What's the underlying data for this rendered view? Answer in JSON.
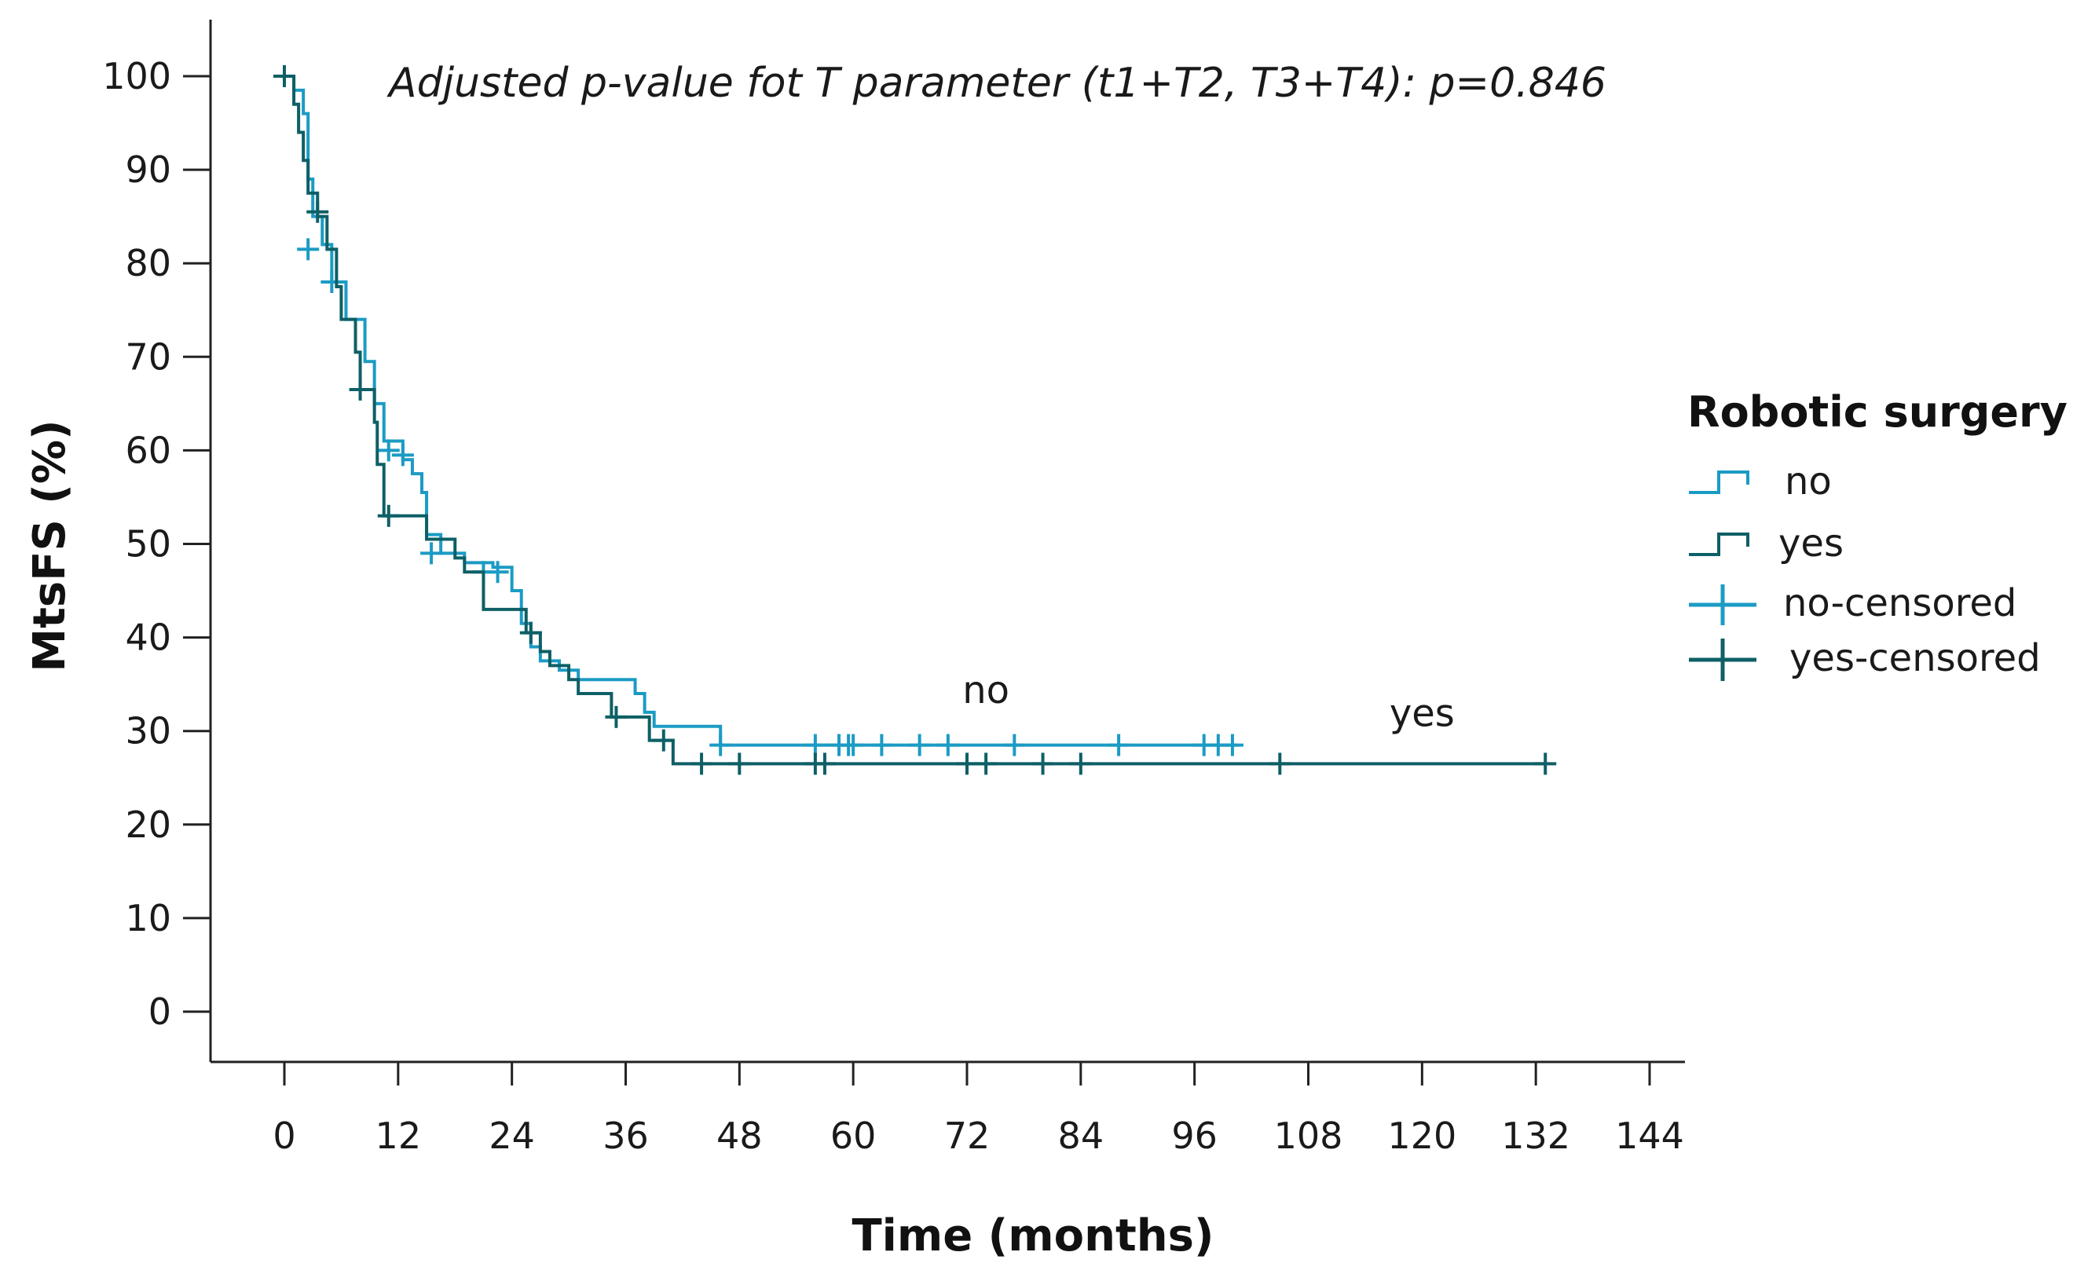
{
  "chart_data": {
    "type": "line",
    "subtype": "kaplan-meier",
    "title": "",
    "annotation": "Adjusted p-value fot T parameter (t1+T2, T3+T4):  p=0.846",
    "xlabel": "Time (months)",
    "ylabel": "MtsFS (%)",
    "xlim": [
      0,
      144
    ],
    "ylim": [
      0,
      100
    ],
    "xticks": [
      0,
      12,
      24,
      36,
      48,
      60,
      72,
      84,
      96,
      108,
      120,
      132,
      144
    ],
    "yticks": [
      0,
      10,
      20,
      30,
      40,
      50,
      60,
      70,
      80,
      90,
      100
    ],
    "grid": false,
    "legend": {
      "title": "Robotic surgery",
      "position": "right",
      "entries": [
        "no",
        "yes",
        "no-censored",
        "yes-censored"
      ]
    },
    "series": [
      {
        "name": "no",
        "color": "#1b9bc4",
        "steps": [
          [
            0,
            100
          ],
          [
            1,
            98.5
          ],
          [
            2,
            96
          ],
          [
            2.5,
            89
          ],
          [
            3,
            85
          ],
          [
            4,
            82
          ],
          [
            5,
            78
          ],
          [
            6.5,
            74
          ],
          [
            8.5,
            69.5
          ],
          [
            9.5,
            65
          ],
          [
            10.5,
            61
          ],
          [
            12.5,
            59
          ],
          [
            13.5,
            57.5
          ],
          [
            14.5,
            55.5
          ],
          [
            15,
            51
          ],
          [
            16.5,
            49
          ],
          [
            19,
            48
          ],
          [
            22,
            47.5
          ],
          [
            24,
            45
          ],
          [
            25,
            41.5
          ],
          [
            26,
            39
          ],
          [
            27,
            37.5
          ],
          [
            29,
            36.5
          ],
          [
            31,
            35.5
          ],
          [
            37,
            34
          ],
          [
            38,
            32
          ],
          [
            39,
            30.5
          ],
          [
            46,
            28.5
          ],
          [
            100.5,
            28.5
          ]
        ],
        "censored": [
          [
            2.5,
            81.5
          ],
          [
            5,
            78
          ],
          [
            11,
            60
          ],
          [
            12.5,
            59.5
          ],
          [
            15.5,
            49
          ],
          [
            21,
            47
          ],
          [
            22.5,
            47
          ],
          [
            46,
            28.5
          ],
          [
            56,
            28.5
          ],
          [
            58.5,
            28.5
          ],
          [
            59.5,
            28.5
          ],
          [
            60,
            28.5
          ],
          [
            63,
            28.5
          ],
          [
            67,
            28.5
          ],
          [
            70,
            28.5
          ],
          [
            77,
            28.5
          ],
          [
            88,
            28.5
          ],
          [
            97,
            28.5
          ],
          [
            98.5,
            28.5
          ],
          [
            100,
            28.5
          ]
        ]
      },
      {
        "name": "yes",
        "color": "#0e5f66",
        "steps": [
          [
            0,
            100
          ],
          [
            1,
            97
          ],
          [
            1.5,
            94
          ],
          [
            2,
            91
          ],
          [
            2.5,
            87.5
          ],
          [
            3.5,
            85
          ],
          [
            4.5,
            81.5
          ],
          [
            5.5,
            77.5
          ],
          [
            6,
            74
          ],
          [
            7.5,
            70.5
          ],
          [
            8,
            66.5
          ],
          [
            9.5,
            63
          ],
          [
            9.8,
            58.5
          ],
          [
            10.5,
            53
          ],
          [
            15,
            50.5
          ],
          [
            18,
            48.5
          ],
          [
            19,
            47
          ],
          [
            21,
            43
          ],
          [
            25.5,
            40.5
          ],
          [
            27,
            38.5
          ],
          [
            28,
            37
          ],
          [
            30,
            35.5
          ],
          [
            31,
            34
          ],
          [
            34.5,
            31.5
          ],
          [
            38.5,
            29
          ],
          [
            41,
            26.5
          ],
          [
            133,
            26.5
          ]
        ],
        "censored": [
          [
            0,
            100
          ],
          [
            3.5,
            85.5
          ],
          [
            8,
            66.5
          ],
          [
            11,
            53
          ],
          [
            26,
            40.5
          ],
          [
            35,
            31.5
          ],
          [
            40,
            29
          ],
          [
            44,
            26.5
          ],
          [
            48,
            26.5
          ],
          [
            56,
            26.5
          ],
          [
            57,
            26.5
          ],
          [
            72,
            26.5
          ],
          [
            74,
            26.5
          ],
          [
            80,
            26.5
          ],
          [
            84,
            26.5
          ],
          [
            105,
            26.5
          ],
          [
            133,
            26.5
          ]
        ]
      }
    ],
    "curve_labels": [
      {
        "text": "no",
        "x": 74,
        "y": 33
      },
      {
        "text": "yes",
        "x": 120,
        "y": 30.5
      }
    ]
  }
}
